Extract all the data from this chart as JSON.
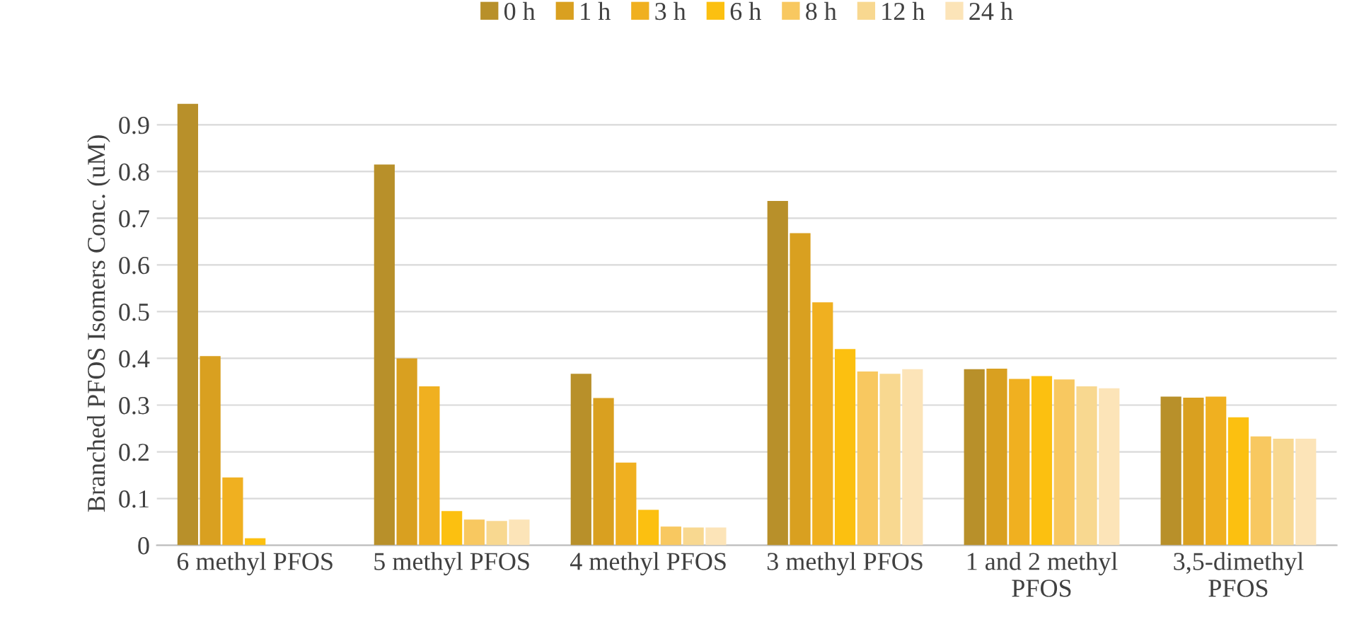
{
  "chart_data": {
    "type": "bar",
    "ylabel": "Branched PFOS Isomers Conc. (uM)",
    "categories": [
      "6 methyl PFOS",
      "5 methyl PFOS",
      "4 methyl PFOS",
      "3 methyl PFOS",
      "1 and 2 methyl\nPFOS",
      "3,5-dimethyl\nPFOS"
    ],
    "series": [
      {
        "name": "0 h",
        "color": "#b8902a",
        "values": [
          0.945,
          0.815,
          0.367,
          0.737,
          0.377,
          0.318
        ]
      },
      {
        "name": "1 h",
        "color": "#d9a020",
        "values": [
          0.405,
          0.4,
          0.315,
          0.668,
          0.378,
          0.316
        ]
      },
      {
        "name": "3 h",
        "color": "#f0b020",
        "values": [
          0.145,
          0.34,
          0.177,
          0.52,
          0.356,
          0.318
        ]
      },
      {
        "name": "6 h",
        "color": "#fcc010",
        "values": [
          0.015,
          0.073,
          0.076,
          0.42,
          0.362,
          0.274
        ]
      },
      {
        "name": "8 h",
        "color": "#f8c860",
        "values": [
          0,
          0.055,
          0.04,
          0.372,
          0.355,
          0.233
        ]
      },
      {
        "name": "12 h",
        "color": "#f8d890",
        "values": [
          0,
          0.052,
          0.038,
          0.367,
          0.34,
          0.228
        ]
      },
      {
        "name": "24 h",
        "color": "#fce4b8",
        "values": [
          0,
          0.055,
          0.038,
          0.377,
          0.336,
          0.228
        ]
      }
    ],
    "ylim": [
      0,
      0.95
    ],
    "yticks": [
      0,
      0.1,
      0.2,
      0.3,
      0.4,
      0.5,
      0.6,
      0.7,
      0.8,
      0.9
    ],
    "grid": "y",
    "legend": "top"
  }
}
